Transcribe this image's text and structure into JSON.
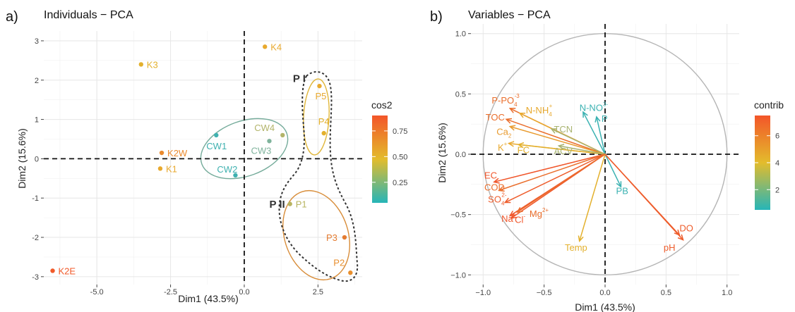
{
  "chart_data": [
    {
      "panel": "a)",
      "type": "scatter",
      "title": "Individuals − PCA",
      "xlabel": "Dim1 (43.5%)",
      "ylabel": "Dim2 (15.6%)",
      "xlim": [
        -6.8,
        4.0
      ],
      "ylim": [
        -3.2,
        3.25
      ],
      "xticks": [
        -5.0,
        -2.5,
        0.0,
        2.5
      ],
      "xtick_labels": [
        "-5.0",
        "-2.5",
        "0.0",
        "2.5"
      ],
      "yticks": [
        -3,
        -2,
        -1,
        0,
        1,
        2,
        3
      ],
      "ytick_labels": [
        "-3",
        "-2",
        "-1",
        "0",
        "1",
        "2",
        "3"
      ],
      "grid": true,
      "color_legend": {
        "title": "cos2",
        "ticks": [
          0.25,
          0.5,
          0.75
        ],
        "tick_labels": [
          "0.25",
          "0.50",
          "0.75"
        ],
        "range": [
          0.05,
          0.9
        ],
        "colors": [
          "#26b5b8",
          "#e3bc2c",
          "#f35529"
        ]
      },
      "points": [
        {
          "label": "K4",
          "x": 0.7,
          "y": 2.85,
          "color": "#e8a92e"
        },
        {
          "label": "K3",
          "x": -3.5,
          "y": 2.4,
          "color": "#e3b02c"
        },
        {
          "label": "P5",
          "x": 2.55,
          "y": 1.85,
          "color": "#e8a92e"
        },
        {
          "label": "P4",
          "x": 2.7,
          "y": 0.65,
          "color": "#e3b02c"
        },
        {
          "label": "CW4",
          "x": 1.3,
          "y": 0.6,
          "color": "#b2b46a"
        },
        {
          "label": "CW3",
          "x": 0.85,
          "y": 0.45,
          "color": "#7fb39c"
        },
        {
          "label": "CW1",
          "x": -0.95,
          "y": 0.6,
          "color": "#3fb1b0"
        },
        {
          "label": "K2W",
          "x": -2.8,
          "y": 0.15,
          "color": "#ea8a2e"
        },
        {
          "label": "K1",
          "x": -2.85,
          "y": -0.25,
          "color": "#e8a92e"
        },
        {
          "label": "CW2",
          "x": -0.3,
          "y": -0.42,
          "color": "#3fb1b0"
        },
        {
          "label": "P1",
          "x": 1.55,
          "y": -1.15,
          "color": "#b8b460"
        },
        {
          "label": "P3",
          "x": 3.4,
          "y": -2.0,
          "color": "#e47b30"
        },
        {
          "label": "P2",
          "x": 3.6,
          "y": -2.9,
          "color": "#e88f2e"
        },
        {
          "label": "K2E",
          "x": -6.5,
          "y": -2.85,
          "color": "#f15a2a"
        }
      ],
      "groups": [
        {
          "label": "P I",
          "x": 1.65,
          "y": 1.95
        },
        {
          "label": "P II",
          "x": 0.85,
          "y": -1.25
        }
      ]
    },
    {
      "panel": "b)",
      "type": "scatter",
      "title": "Variables − PCA",
      "xlabel": "Dim1 (43.5%)",
      "ylabel": "Dim2 (15.6%)",
      "xlim": [
        -1.1,
        1.1
      ],
      "ylim": [
        -1.08,
        1.08
      ],
      "xticks": [
        -1.0,
        -0.5,
        0.0,
        0.5,
        1.0
      ],
      "xtick_labels": [
        "−1.0",
        "−0.5",
        "0.0",
        "0.5",
        "1.0"
      ],
      "yticks": [
        -1.0,
        -0.5,
        0.0,
        0.5,
        1.0
      ],
      "ytick_labels": [
        "−1.0",
        "−0.5",
        "0.0",
        "0.5",
        "1.0"
      ],
      "grid": true,
      "color_legend": {
        "title": "contrib",
        "ticks": [
          2,
          4,
          6
        ],
        "tick_labels": [
          "2",
          "4",
          "6"
        ],
        "range": [
          0.5,
          7.5
        ],
        "colors": [
          "#26b5b8",
          "#e3bc2c",
          "#f35529"
        ]
      },
      "arrows": [
        {
          "label": "P-PO",
          "sub": "4",
          "sup": "-3",
          "x": -0.78,
          "y": 0.38,
          "color": "#ea6e2c",
          "lx": -0.93,
          "ly": 0.42
        },
        {
          "label": "N-NH",
          "sub": "4",
          "sup": "+",
          "x": -0.7,
          "y": 0.34,
          "color": "#e8a92e",
          "lx": -0.65,
          "ly": 0.34
        },
        {
          "label": "N-NO",
          "sub": "",
          "sup": "3-",
          "x": -0.18,
          "y": 0.35,
          "color": "#3bb2b2",
          "lx": -0.21,
          "ly": 0.36
        },
        {
          "label": "P",
          "sub": "",
          "sup": "",
          "x": -0.07,
          "y": 0.31,
          "color": "#3bb2b2",
          "lx": -0.03,
          "ly": 0.27
        },
        {
          "label": "TOC",
          "sub": "",
          "sup": "",
          "x": -0.81,
          "y": 0.29,
          "color": "#ea6e2c",
          "lx": -0.98,
          "ly": 0.28
        },
        {
          "label": "TCN",
          "sub": "",
          "sup": "",
          "x": -0.44,
          "y": 0.21,
          "color": "#a8b370",
          "lx": -0.42,
          "ly": 0.18
        },
        {
          "label": "Ca",
          "sub": "2",
          "sup": "",
          "x": -0.78,
          "y": 0.23,
          "color": "#e89a2e",
          "lx": -0.89,
          "ly": 0.16
        },
        {
          "label": "K",
          "sub": "",
          "sup": "+",
          "x": -0.79,
          "y": 0.09,
          "color": "#e8a92e",
          "lx": -0.88,
          "ly": 0.03
        },
        {
          "label": "FC",
          "sub": "",
          "sup": "",
          "x": -0.71,
          "y": 0.08,
          "color": "#e3b02c",
          "lx": -0.72,
          "ly": 0.01
        },
        {
          "label": "ACV",
          "sub": "",
          "sup": "",
          "x": -0.38,
          "y": 0.07,
          "color": "#a8b370",
          "lx": -0.42,
          "ly": 0.0
        },
        {
          "label": "EC",
          "sub": "",
          "sup": "",
          "x": -0.91,
          "y": -0.23,
          "color": "#f0562b",
          "lx": -0.99,
          "ly": -0.2
        },
        {
          "label": "COD",
          "sub": "",
          "sup": "",
          "x": -0.87,
          "y": -0.3,
          "color": "#ea6e2c",
          "lx": -0.99,
          "ly": -0.3
        },
        {
          "label": "SO",
          "sub": "4",
          "sup": "2-",
          "x": -0.82,
          "y": -0.4,
          "color": "#ee5c2b",
          "lx": -0.96,
          "ly": -0.4
        },
        {
          "label": "Na",
          "sub": "",
          "sup": "+",
          "x": -0.78,
          "y": -0.51,
          "color": "#f0562b",
          "lx": -0.85,
          "ly": -0.56
        },
        {
          "label": "Cl",
          "sub": "",
          "sup": "-",
          "x": -0.77,
          "y": -0.53,
          "color": "#f0562b",
          "lx": -0.74,
          "ly": -0.57
        },
        {
          "label": "Mg",
          "sub": "",
          "sup": "2+",
          "x": -0.72,
          "y": -0.48,
          "color": "#ea6e2c",
          "lx": -0.62,
          "ly": -0.52
        },
        {
          "label": "PB",
          "sub": "",
          "sup": "",
          "x": 0.13,
          "y": -0.27,
          "color": "#3bb2b2",
          "lx": 0.09,
          "ly": -0.33
        },
        {
          "label": "Temp",
          "sub": "",
          "sup": "",
          "x": -0.21,
          "y": -0.72,
          "color": "#e3b02c",
          "lx": -0.33,
          "ly": -0.8
        },
        {
          "label": "DO",
          "sub": "",
          "sup": "",
          "x": 0.61,
          "y": -0.67,
          "color": "#ee5c2b",
          "lx": 0.61,
          "ly": -0.64
        },
        {
          "label": "pH",
          "sub": "",
          "sup": "",
          "x": 0.64,
          "y": -0.71,
          "color": "#ee5c2b",
          "lx": 0.48,
          "ly": -0.8
        }
      ]
    }
  ]
}
